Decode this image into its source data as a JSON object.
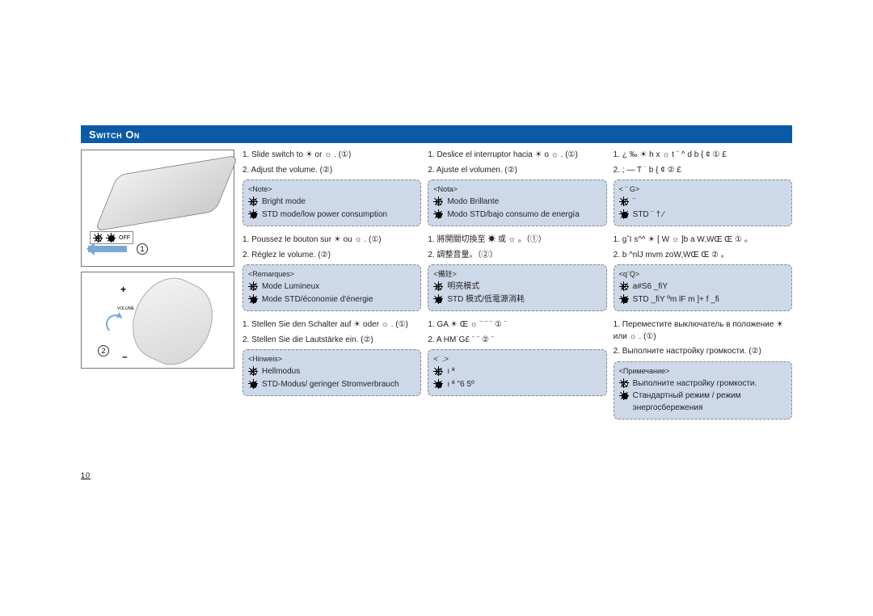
{
  "header": {
    "title": "Switch On"
  },
  "page_number": "10",
  "legend": {
    "off": "OFF"
  },
  "colors": {
    "header_bg": "#0b5aa8",
    "note_bg": "#cdd9e9",
    "arrow": "#7aa8d6"
  },
  "blocks": [
    {
      "instructions": [
        "1. Slide switch to ☀ or ☼ . (①)",
        "2. Adjust the volume. (②)"
      ],
      "note_title": "<Note>",
      "note_bright": "Bright mode",
      "note_std": "STD mode/low power consumption"
    },
    {
      "instructions": [
        "1. Deslice el interruptor hacia ☀ o ☼ . (①)",
        "2. Ajuste el volumen. (②)"
      ],
      "note_title": "<Nota>",
      "note_bright": "Modo Brillante",
      "note_std": "Modo STD/bajo consumo de energía"
    },
    {
      "instructions": [
        "1.    ¿ ‰     ☀    h x    ☼   t   ¨ ^ d   b { ¢      ① £",
        "2.  ;    — T ˙   b { ¢        ② £"
      ],
      "note_title": "< ¨ G>",
      "note_bright": "      ¨",
      "note_std": "STD     ¨      † ⁄"
    },
    {
      "instructions": [
        "1. Poussez le bouton sur ☀ ou ☼ . (①)",
        "2. Réglez le volume. (②)"
      ],
      "note_title": "<Remarques>",
      "note_bright": "Mode Lumineux",
      "note_std": "Mode STD/économie d'énergie"
    },
    {
      "instructions": [
        "1. 將開關切換至 ☀ 或 ☼ 。（①）",
        "2. 調整音量。（②）"
      ],
      "note_title": "<備註>",
      "note_bright": "明亮模式",
      "note_std": "STD 模式/低電源消耗"
    },
    {
      "instructions": [
        "1. gˇI s^^   ☀ [ W   ☼ ]b   a W‚WŒ Œ ① 。",
        "2. b ^nlJ  mvm zoW‚WŒ Œ ② 。"
      ],
      "note_title": "<q¨Q>",
      "note_bright": "a#S6  _fiY",
      "note_std": "STD _fiY  ºm lF  m ]+  f _fi"
    },
    {
      "instructions": [
        "1. Stellen Sie den Schalter auf ☀ oder ☼ . (①)",
        "2. Stellen Sie die Lautstärke ein. (②)"
      ],
      "note_title": "<Hinweis>",
      "note_bright": "Hellmodus",
      "note_std": "STD-Modus/ geringer Stromverbrauch"
    },
    {
      "instructions": [
        "1.       GA       ☀   Œ  ☼ ¨ ¨ ¨  ① ¨",
        "2.  A  HM˙G£ ¨ ¨  ② ¨"
      ],
      "note_title": "<˙ .>",
      "note_bright": "    ı ª",
      "note_std": "    ı ª   ''6 5º"
    },
    {
      "instructions": [
        "1. Переместите выключатель в положение ☀ или ☼ . (①)",
        "2. Выполните настройку громкости. (②)"
      ],
      "note_title": "<Примечание>",
      "note_bright": "Выполните настройку громкости.",
      "note_std": "Стандартный режим / режим энергосбережения"
    }
  ]
}
